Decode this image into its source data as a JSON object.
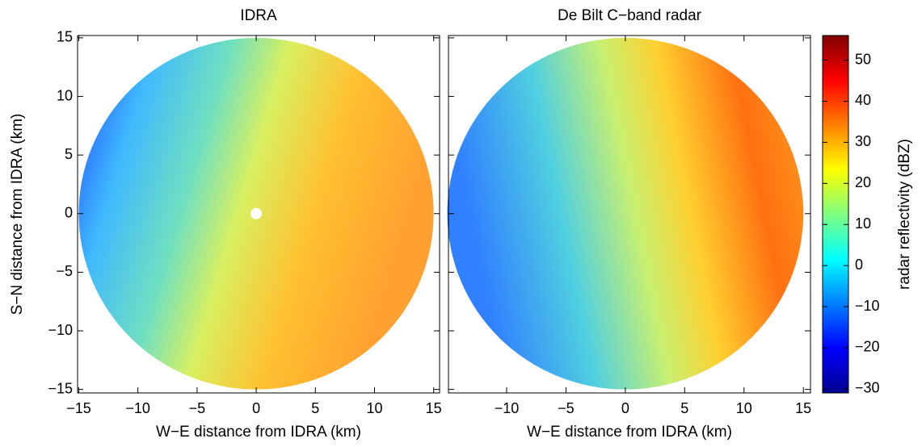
{
  "chart_data": [
    {
      "type": "radar",
      "title": "IDRA",
      "xlabel": "W−E distance from IDRA (km)",
      "ylabel": "S−N distance from IDRA (km)",
      "xlim": [
        -15.1,
        15.5
      ],
      "ylim": [
        -15.3,
        15.2
      ],
      "radius": 15,
      "xticks": [
        {
          "value": -15,
          "label": "−15"
        },
        {
          "value": -10,
          "label": "−10"
        },
        {
          "value": -5,
          "label": "−5"
        },
        0,
        5,
        10,
        15
      ],
      "yticks": [
        {
          "value": -15,
          "label": "−15"
        },
        {
          "value": -10,
          "label": "−10"
        },
        {
          "value": -5,
          "label": "−5"
        },
        0,
        5,
        10,
        15
      ],
      "show_ytick_labels": true
    },
    {
      "type": "radar",
      "title": "De Bilt C−band radar",
      "xlabel": "W−E distance from IDRA (km)",
      "xlim": [
        -14.9,
        15.6
      ],
      "ylim": [
        -15.3,
        15.2
      ],
      "radius": 15,
      "xticks": [
        {
          "value": -10,
          "label": "−10"
        },
        {
          "value": -5,
          "label": "−5"
        },
        0,
        5,
        10,
        15
      ],
      "yticks": [
        -15,
        -10,
        -5,
        0,
        5,
        10,
        15
      ],
      "show_ytick_labels": false
    },
    {
      "type": "colorbar",
      "label": "radar reflectivity (dBZ)",
      "colormap": "jet",
      "clim": [
        -31,
        56
      ],
      "ticks": [
        {
          "value": -30,
          "label": "−30"
        },
        {
          "value": -20,
          "label": "−20"
        },
        {
          "value": -10,
          "label": "−10"
        },
        0,
        10,
        20,
        30,
        40,
        50
      ]
    }
  ]
}
